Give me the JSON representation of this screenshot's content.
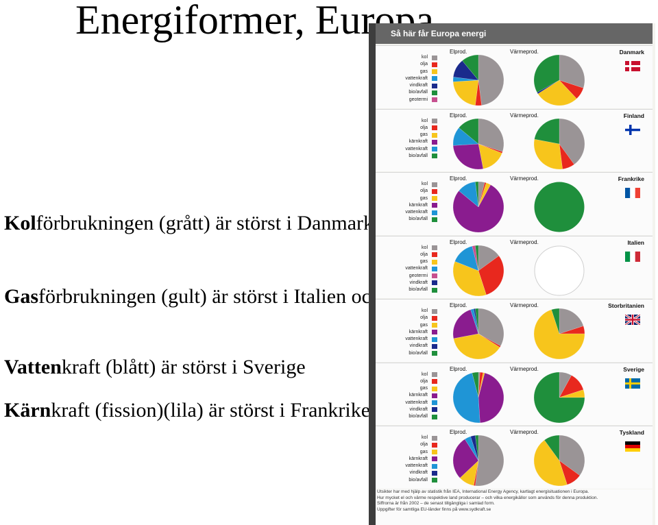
{
  "slide": {
    "title": "Energiformer, Europa",
    "bullets": [
      {
        "bold": "Kol",
        "text": "förbrukningen (grått) är störst i Danmark och Tyskland"
      },
      {
        "bold": "Gas",
        "text": "förbrukningen (gult) är störst i Italien och England"
      },
      {
        "bold": "Vatten",
        "text": "kraft (blått) är störst i Sverige"
      },
      {
        "bold": "Kärn",
        "text": "kraft (fission)(lila) är störst i Frankrike"
      }
    ]
  },
  "poster": {
    "header_title": "Så här får Europa energi",
    "elprod_label": "Elprod.",
    "varmeprod_label": "Värmeprod.",
    "colors": {
      "kol": "#9a9496",
      "olja": "#e8281e",
      "gas": "#f7c51c",
      "kärnkraft": "#8a1c8f",
      "vattenkraft": "#1f95d6",
      "vindkraft": "#1a2a8c",
      "bio/avfall": "#1f8f3c",
      "geotermi": "#c7508f"
    },
    "countries": [
      {
        "name": "Danmark",
        "flag": "danmark",
        "legend": [
          "kol",
          "olja",
          "gas",
          "vattenkraft",
          "vindkraft",
          "bio/avfall",
          "geotermi"
        ],
        "el": [
          {
            "k": "kol",
            "v": 48
          },
          {
            "k": "olja",
            "v": 4
          },
          {
            "k": "gas",
            "v": 22
          },
          {
            "k": "vattenkraft",
            "v": 3
          },
          {
            "k": "vindkraft",
            "v": 12
          },
          {
            "k": "bio/avfall",
            "v": 11
          }
        ],
        "varme": [
          {
            "k": "kol",
            "v": 30
          },
          {
            "k": "olja",
            "v": 8
          },
          {
            "k": "gas",
            "v": 28
          },
          {
            "k": "vindkraft",
            "v": 1
          },
          {
            "k": "bio/avfall",
            "v": 33
          }
        ]
      },
      {
        "name": "Finland",
        "flag": "finland",
        "legend": [
          "kol",
          "olja",
          "gas",
          "kärnkraft",
          "vattenkraft",
          "bio/avfall"
        ],
        "el": [
          {
            "k": "kol",
            "v": 30
          },
          {
            "k": "olja",
            "v": 1
          },
          {
            "k": "gas",
            "v": 16
          },
          {
            "k": "kärnkraft",
            "v": 27
          },
          {
            "k": "vattenkraft",
            "v": 12
          },
          {
            "k": "bio/avfall",
            "v": 14
          }
        ],
        "varme": [
          {
            "k": "kol",
            "v": 40
          },
          {
            "k": "olja",
            "v": 8
          },
          {
            "k": "gas",
            "v": 30
          },
          {
            "k": "bio/avfall",
            "v": 22
          }
        ]
      },
      {
        "name": "Frankrike",
        "flag": "frankrike",
        "legend": [
          "kol",
          "olja",
          "gas",
          "kärnkraft",
          "vattenkraft",
          "bio/avfall"
        ],
        "el": [
          {
            "k": "kol",
            "v": 4
          },
          {
            "k": "olja",
            "v": 1
          },
          {
            "k": "gas",
            "v": 3
          },
          {
            "k": "kärnkraft",
            "v": 78
          },
          {
            "k": "vattenkraft",
            "v": 12
          },
          {
            "k": "bio/avfall",
            "v": 2
          }
        ],
        "varme": [
          {
            "k": "bio/avfall",
            "v": 100
          }
        ]
      },
      {
        "name": "Italien",
        "flag": "italien",
        "legend": [
          "kol",
          "olja",
          "gas",
          "vattenkraft",
          "geotermi",
          "vindkraft",
          "bio/avfall"
        ],
        "el": [
          {
            "k": "kol",
            "v": 15
          },
          {
            "k": "olja",
            "v": 30
          },
          {
            "k": "gas",
            "v": 36
          },
          {
            "k": "vattenkraft",
            "v": 15
          },
          {
            "k": "geotermi",
            "v": 2
          },
          {
            "k": "bio/avfall",
            "v": 2
          }
        ],
        "varme": []
      },
      {
        "name": "Storbritanien",
        "flag": "storbritanien",
        "legend": [
          "kol",
          "olja",
          "gas",
          "kärnkraft",
          "vattenkraft",
          "vindkraft",
          "bio/avfall"
        ],
        "el": [
          {
            "k": "kol",
            "v": 33
          },
          {
            "k": "olja",
            "v": 1
          },
          {
            "k": "gas",
            "v": 38
          },
          {
            "k": "kärnkraft",
            "v": 23
          },
          {
            "k": "vattenkraft",
            "v": 2
          },
          {
            "k": "vindkraft",
            "v": 1
          },
          {
            "k": "bio/avfall",
            "v": 2
          }
        ],
        "varme": [
          {
            "k": "kol",
            "v": 20
          },
          {
            "k": "olja",
            "v": 5
          },
          {
            "k": "gas",
            "v": 70
          },
          {
            "k": "bio/avfall",
            "v": 5
          }
        ]
      },
      {
        "name": "Sverige",
        "flag": "sverige",
        "legend": [
          "kol",
          "olja",
          "gas",
          "kärnkraft",
          "vattenkraft",
          "vindkraft",
          "bio/avfall"
        ],
        "el": [
          {
            "k": "kol",
            "v": 1
          },
          {
            "k": "olja",
            "v": 2
          },
          {
            "k": "gas",
            "v": 1
          },
          {
            "k": "kärnkraft",
            "v": 45
          },
          {
            "k": "vattenkraft",
            "v": 47
          },
          {
            "k": "bio/avfall",
            "v": 4
          }
        ],
        "varme": [
          {
            "k": "kol",
            "v": 8
          },
          {
            "k": "olja",
            "v": 12
          },
          {
            "k": "gas",
            "v": 5
          },
          {
            "k": "bio/avfall",
            "v": 75
          }
        ]
      },
      {
        "name": "Tyskland",
        "flag": "tyskland",
        "legend": [
          "kol",
          "olja",
          "gas",
          "kärnkraft",
          "vattenkraft",
          "vindkraft",
          "bio/avfall"
        ],
        "el": [
          {
            "k": "kol",
            "v": 52
          },
          {
            "k": "olja",
            "v": 1
          },
          {
            "k": "gas",
            "v": 10
          },
          {
            "k": "kärnkraft",
            "v": 28
          },
          {
            "k": "vattenkraft",
            "v": 4
          },
          {
            "k": "vindkraft",
            "v": 3
          },
          {
            "k": "bio/avfall",
            "v": 2
          }
        ],
        "varme": [
          {
            "k": "kol",
            "v": 35
          },
          {
            "k": "olja",
            "v": 10
          },
          {
            "k": "gas",
            "v": 45
          },
          {
            "k": "bio/avfall",
            "v": 10
          }
        ]
      }
    ],
    "footer": [
      "Utsikter har med hjälp av statistik från IEA, International Energy Agency, kartlagt energisituationen i Europa.",
      "Hur mycket el och värme respektive land producerar – och vilka energikällor som används för denna produktion.",
      "Siffrorna är från 2002 – de senast tillgängliga i samlad form.",
      "Uppgifter för samtliga EU-länder finns på www.sydkraft.se"
    ]
  }
}
